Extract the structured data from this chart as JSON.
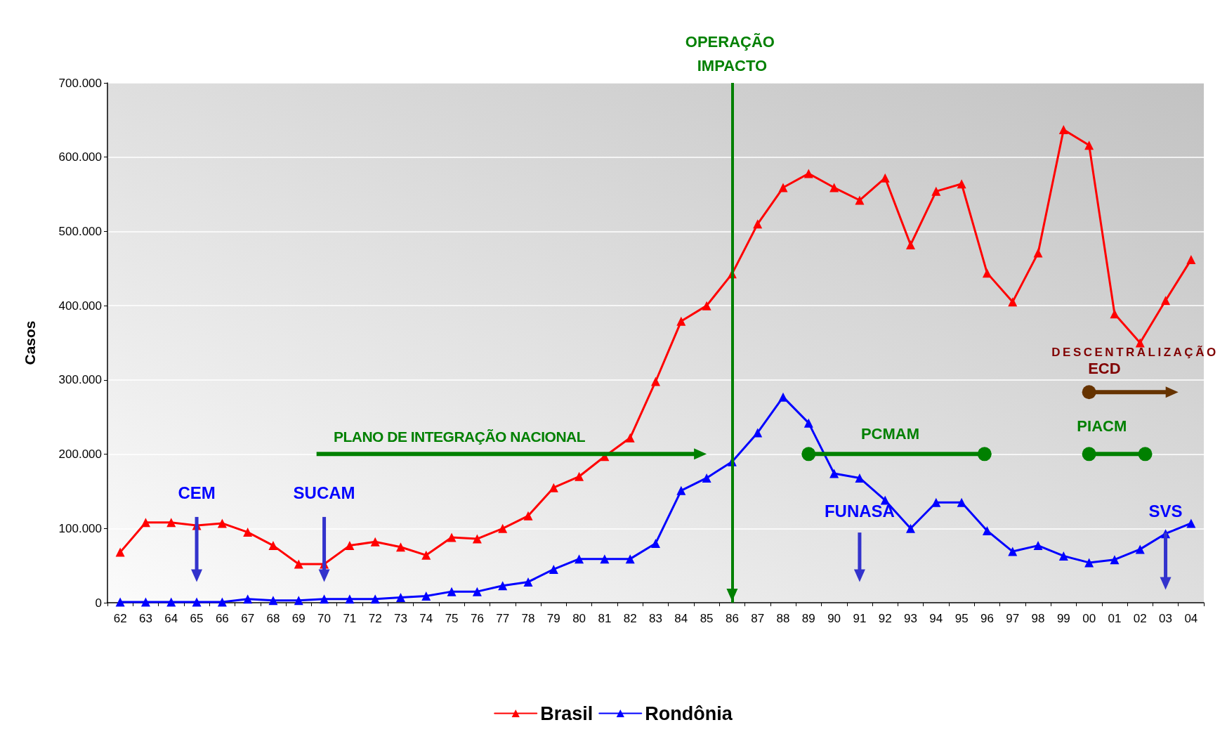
{
  "chart_data": {
    "type": "line",
    "ylabel": "Casos",
    "categories": [
      "62",
      "63",
      "64",
      "65",
      "66",
      "67",
      "68",
      "69",
      "70",
      "71",
      "72",
      "73",
      "74",
      "75",
      "76",
      "77",
      "78",
      "79",
      "80",
      "81",
      "82",
      "83",
      "84",
      "85",
      "86",
      "87",
      "88",
      "89",
      "90",
      "91",
      "92",
      "93",
      "94",
      "95",
      "96",
      "97",
      "98",
      "99",
      "00",
      "01",
      "02",
      "03",
      "04"
    ],
    "series": [
      {
        "name": "Brasil",
        "color": "#ff0000",
        "values": [
          68000,
          108000,
          108000,
          104000,
          107000,
          95000,
          77000,
          52000,
          52000,
          77000,
          82000,
          75000,
          64000,
          88000,
          86000,
          100000,
          117000,
          155000,
          170000,
          197000,
          222000,
          298000,
          379000,
          400000,
          443000,
          510000,
          559000,
          578000,
          559000,
          542000,
          572000,
          482000,
          554000,
          564000,
          444000,
          405000,
          471000,
          637000,
          616000,
          389000,
          350000,
          407000,
          462000
        ]
      },
      {
        "name": "Rondônia",
        "color": "#0000ff",
        "values": [
          1000,
          1000,
          1000,
          1000,
          1000,
          5000,
          3000,
          3000,
          5000,
          5000,
          5000,
          7000,
          9000,
          15000,
          15000,
          23000,
          28000,
          45000,
          59000,
          59000,
          59000,
          80000,
          151000,
          168000,
          190000,
          229000,
          277000,
          242000,
          174000,
          168000,
          138000,
          100000,
          135000,
          135000,
          97000,
          69000,
          77000,
          63000,
          54000,
          58000,
          72000,
          93000,
          107000
        ]
      }
    ],
    "ylim": [
      0,
      700000
    ],
    "yticks": [
      {
        "value": 0,
        "label": "0"
      },
      {
        "value": 100000,
        "label": "100.000"
      },
      {
        "value": 200000,
        "label": "200.000"
      },
      {
        "value": 300000,
        "label": "300.000"
      },
      {
        "value": 400000,
        "label": "400.000"
      },
      {
        "value": 500000,
        "label": "500.000"
      },
      {
        "value": 600000,
        "label": "600.000"
      },
      {
        "value": 700000,
        "label": "700.000"
      }
    ],
    "grid": "y",
    "legend": "bottom",
    "marker": "triangle",
    "line_style": "solid",
    "ref_lines": [
      {
        "axis": "x",
        "value": "86",
        "label": "OPERAÇÃO IMPACTO",
        "color": "#008000"
      }
    ],
    "annotations": [
      "CEM",
      "SUCAM",
      "FUNASA",
      "SVS",
      "PLANO DE INTEGRAÇÃO NACIONAL",
      "PCMAM",
      "PIACM",
      "DESCENTRALIZAÇÃO",
      "ECD"
    ]
  }
}
